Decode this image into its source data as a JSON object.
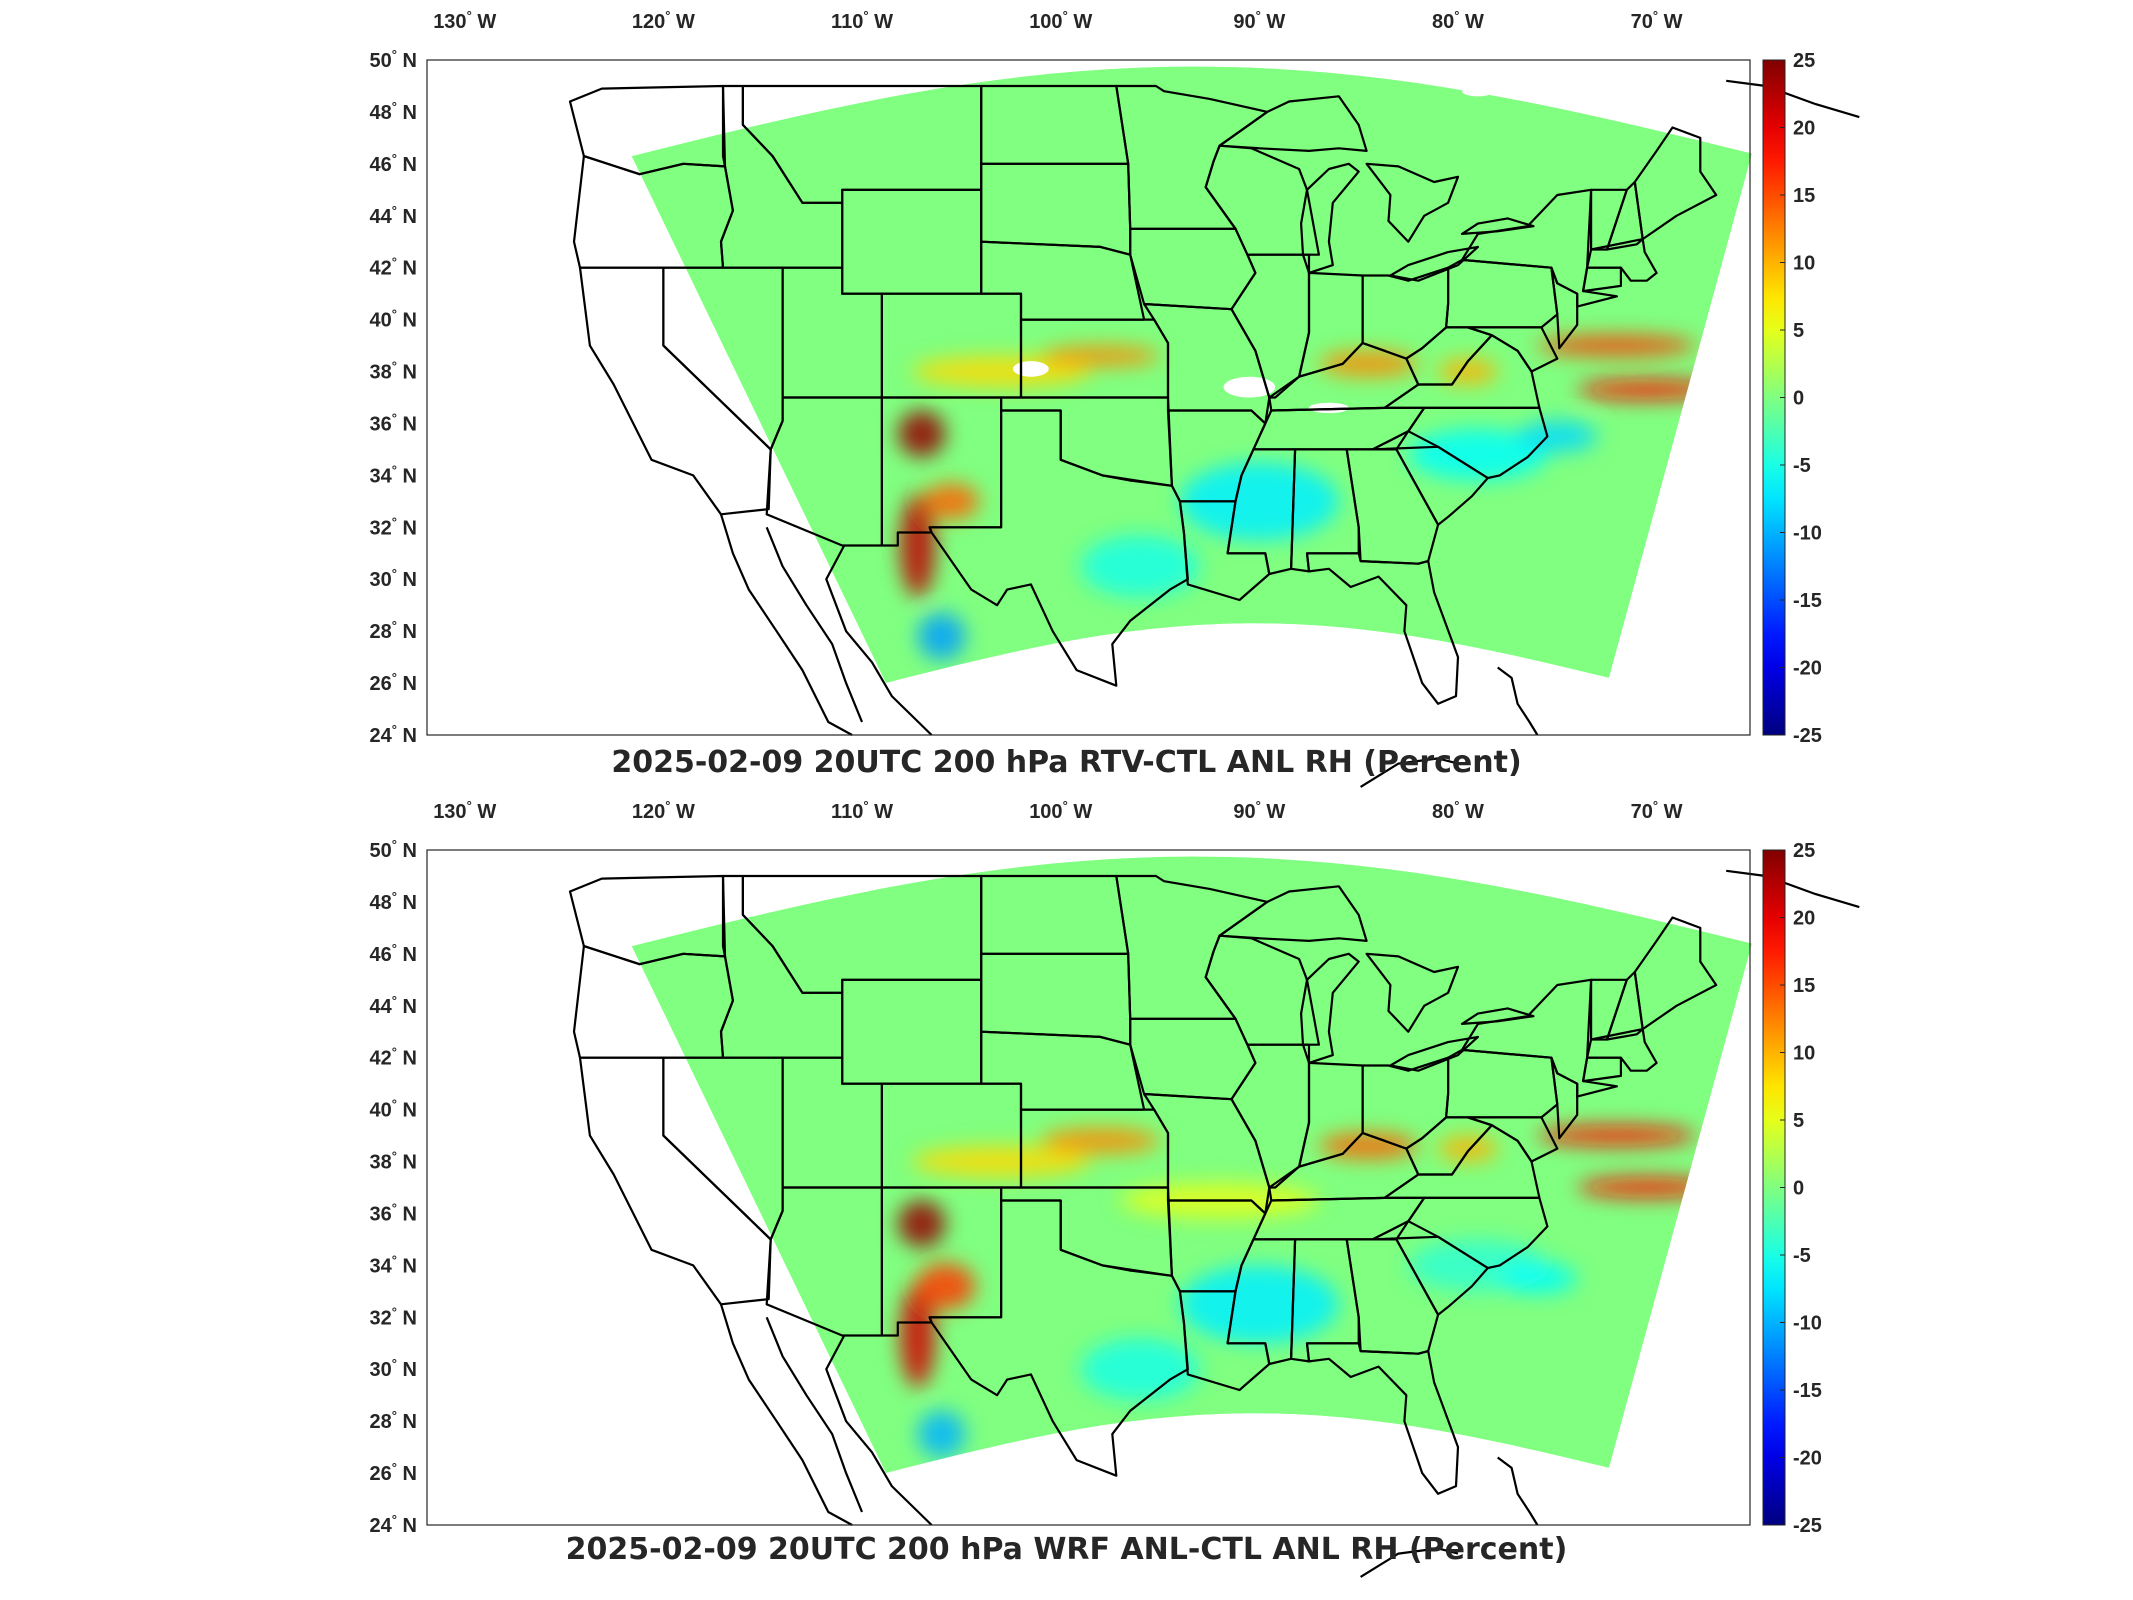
{
  "figure": {
    "colormap": "jet",
    "colorbar": {
      "min": -25,
      "max": 25,
      "ticks": [
        "25",
        "20",
        "15",
        "10",
        "5",
        "0",
        "-5",
        "-10",
        "-15",
        "-20",
        "-25"
      ]
    },
    "lon_ticks": [
      "130",
      "120",
      "110",
      "100",
      "90",
      "80",
      "70"
    ],
    "lon_hemisphere": "W",
    "lat_ticks": [
      "50",
      "48",
      "46",
      "44",
      "42",
      "40",
      "38",
      "36",
      "34",
      "32",
      "30",
      "28",
      "26",
      "24"
    ],
    "lat_hemisphere": "N",
    "degree_symbol": "°",
    "coastline_color": "#000000",
    "missing_color": "#ffffff",
    "panels": [
      {
        "id": "top",
        "title": "2025-02-09 20UTC 200 hPa RTV-CTL ANL RH (Percent)"
      },
      {
        "id": "bottom",
        "title": "2025-02-09 20UTC 200 hPa WRF ANL-CTL ANL RH (Percent)"
      }
    ]
  }
}
